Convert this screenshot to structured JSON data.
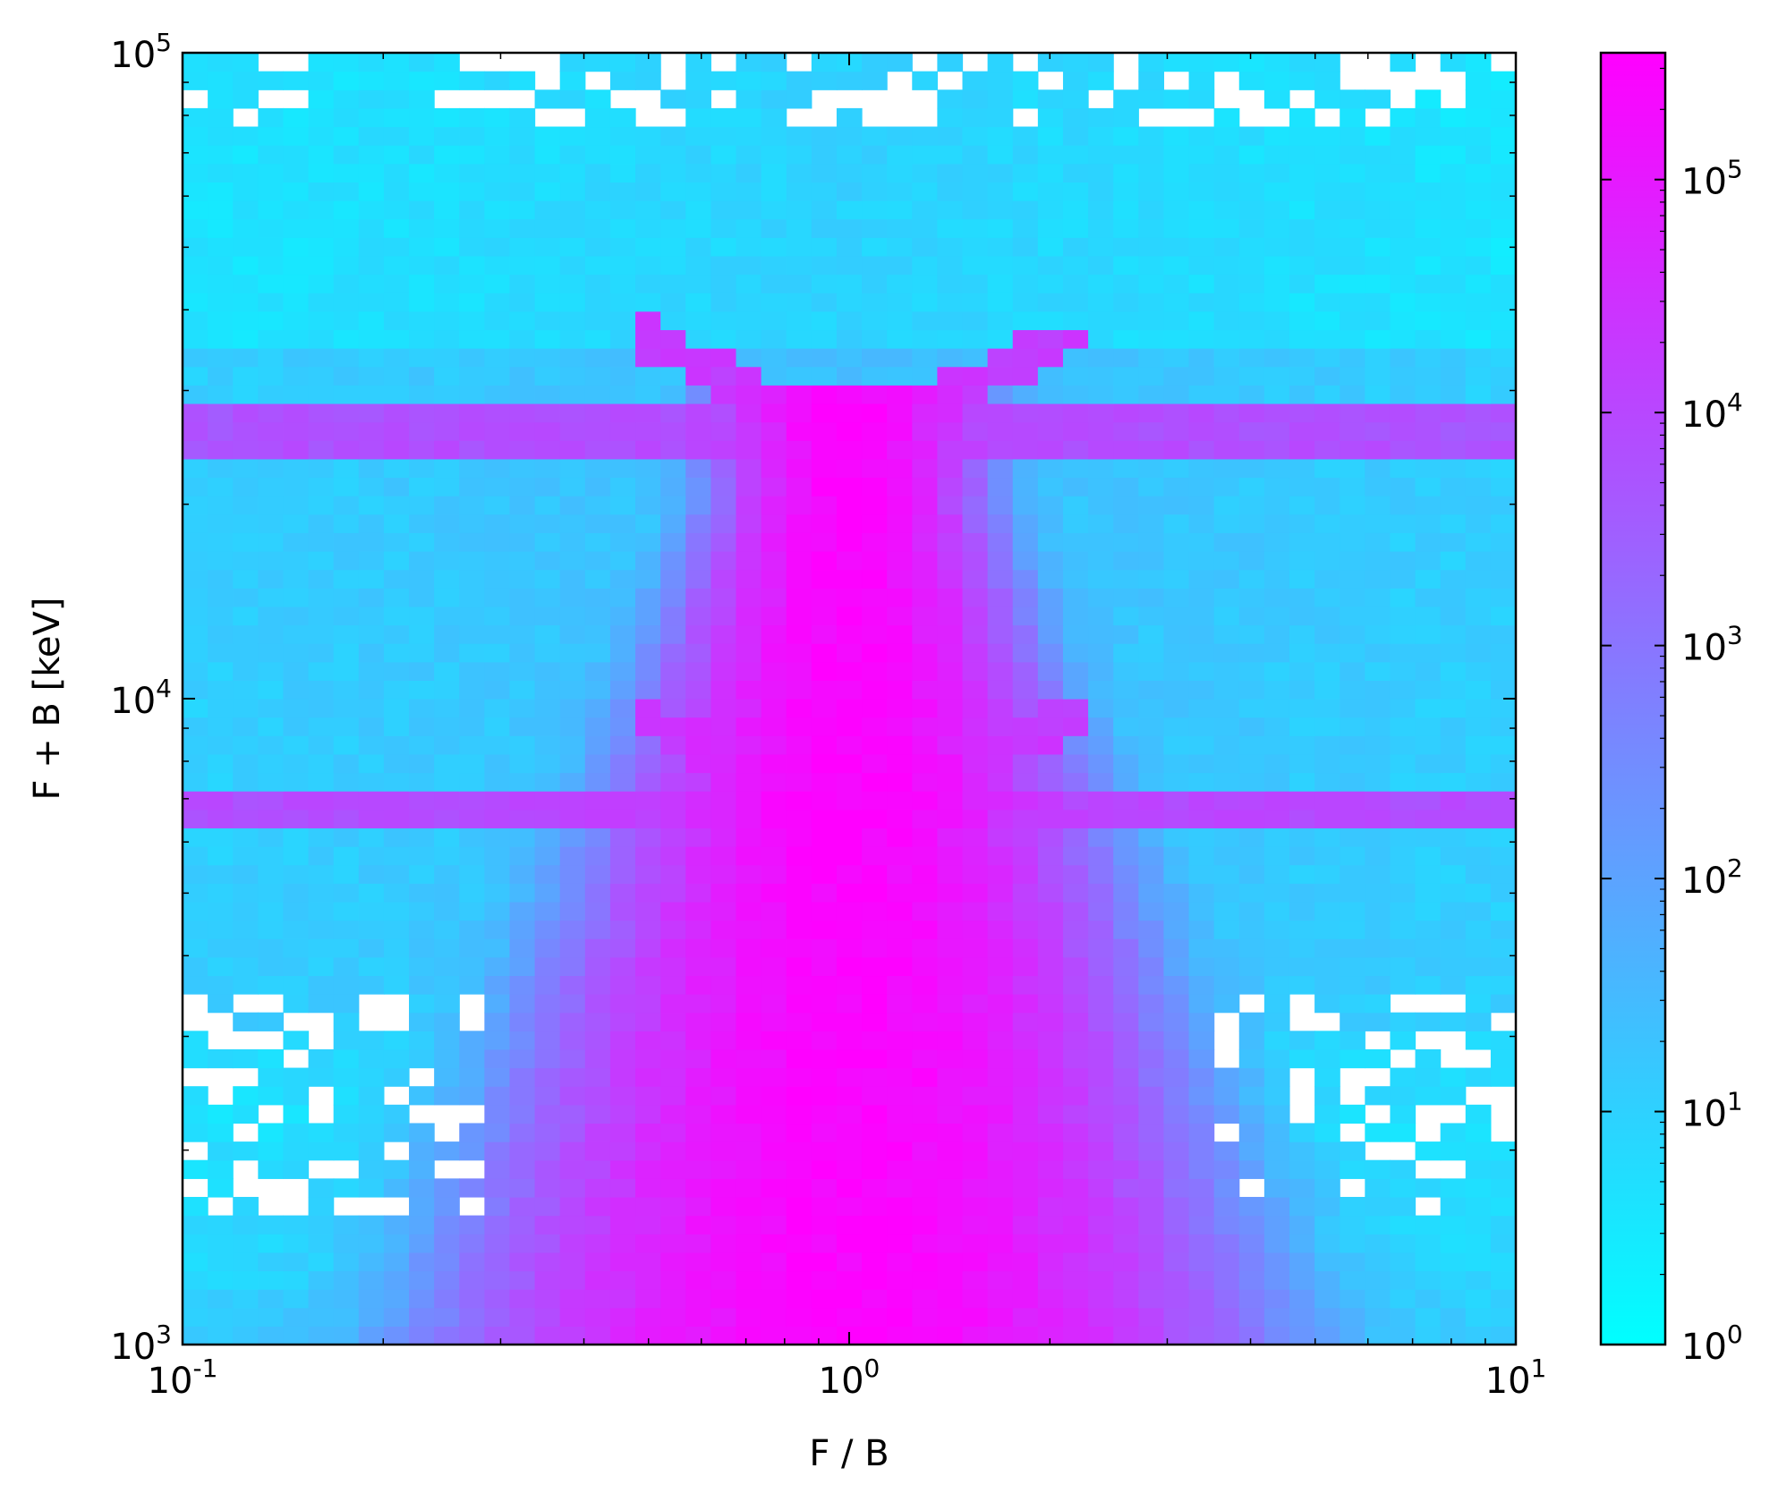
{
  "chart_data": {
    "type": "heatmap",
    "title": "",
    "xlabel": "F / B",
    "ylabel": "F + B [keV]",
    "x_scale": "log",
    "y_scale": "log",
    "xlim": [
      0.1,
      10
    ],
    "ylim": [
      1000,
      100000
    ],
    "x_ticks": [
      {
        "value": 0.1,
        "base": "10",
        "exp": "-1"
      },
      {
        "value": 1,
        "base": "10",
        "exp": "0"
      },
      {
        "value": 10,
        "base": "10",
        "exp": "1"
      }
    ],
    "y_ticks": [
      {
        "value": 1000,
        "base": "10",
        "exp": "3"
      },
      {
        "value": 10000,
        "base": "10",
        "exp": "4"
      },
      {
        "value": 100000,
        "base": "10",
        "exp": "5"
      }
    ],
    "colorbar": {
      "scale": "log",
      "range": [
        1,
        350000
      ],
      "colormap": "cool",
      "color_low": "#00ffff",
      "color_high": "#ff00ff",
      "ticks": [
        {
          "value": 1,
          "base": "10",
          "exp": "0"
        },
        {
          "value": 10,
          "base": "10",
          "exp": "1"
        },
        {
          "value": 100,
          "base": "10",
          "exp": "2"
        },
        {
          "value": 1000,
          "base": "10",
          "exp": "3"
        },
        {
          "value": 10000,
          "base": "10",
          "exp": "4"
        },
        {
          "value": 100000,
          "base": "10",
          "exp": "5"
        }
      ]
    },
    "bins": {
      "x_count": 53,
      "y_count": 70
    },
    "features": [
      {
        "kind": "vertical_ridge",
        "x_center": 1.0,
        "y_range": [
          1000,
          30000
        ],
        "peak_counts": 300000
      },
      {
        "kind": "horizontal_band",
        "y": 27000,
        "x_range": [
          0.1,
          10
        ],
        "counts": 10000
      },
      {
        "kind": "horizontal_band",
        "y": 24500,
        "x_range": [
          0.1,
          10
        ],
        "counts": 12000
      },
      {
        "kind": "horizontal_band",
        "y": 6700,
        "x_range": [
          0.1,
          10
        ],
        "counts": 15000
      },
      {
        "kind": "diagonal_wing",
        "from": [
          0.5,
          36000
        ],
        "to": [
          0.85,
          27000
        ],
        "counts": 20000
      },
      {
        "kind": "diagonal_wing",
        "from": [
          2.1,
          36000
        ],
        "to": [
          1.18,
          27000
        ],
        "counts": 20000
      },
      {
        "kind": "diagonal_wing",
        "from": [
          0.5,
          9200
        ],
        "to": [
          0.85,
          7000
        ],
        "counts": 20000
      },
      {
        "kind": "diagonal_wing",
        "from": [
          2.1,
          9200
        ],
        "to": [
          1.18,
          7000
        ],
        "counts": 20000
      }
    ]
  }
}
